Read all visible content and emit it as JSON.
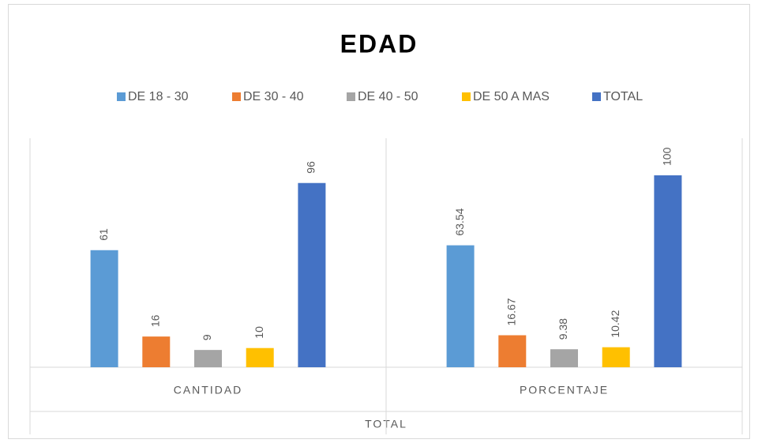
{
  "chart_data": {
    "type": "bar",
    "title": "EDAD",
    "x_label": "TOTAL",
    "categories": [
      "CANTIDAD",
      "PORCENTAJE"
    ],
    "series": [
      {
        "name": "DE 18 - 30",
        "color": "#5b9bd5",
        "values": [
          61,
          63.54
        ]
      },
      {
        "name": "DE 30 - 40",
        "color": "#ed7d31",
        "values": [
          16,
          16.67
        ]
      },
      {
        "name": "DE 40 - 50",
        "color": "#a5a5a5",
        "values": [
          9,
          9.38
        ]
      },
      {
        "name": "DE 50 A MAS",
        "color": "#ffc000",
        "values": [
          10,
          10.42
        ]
      },
      {
        "name": "TOTAL",
        "color": "#4472c4",
        "values": [
          96,
          100
        ]
      }
    ],
    "legend": "top"
  }
}
